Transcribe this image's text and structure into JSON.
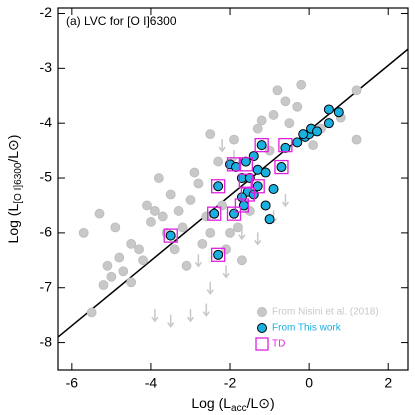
{
  "chart_data": {
    "type": "scatter",
    "title": "(a) LVC for [O I]6300",
    "xlabel": {
      "text": "Log (L",
      "sub": "acc",
      "post": "/L⊙)"
    },
    "ylabel": {
      "text": "Log (L",
      "sub": "[O I]6300",
      "post": "/L⊙)"
    },
    "xlim": [
      -6.35,
      2.5
    ],
    "ylim": [
      -8.5,
      -1.9
    ],
    "xticks": [
      -6,
      -4,
      -2,
      0,
      2
    ],
    "yticks": [
      -8,
      -7,
      -6,
      -5,
      -4,
      -3,
      -2
    ],
    "legend": "lower right",
    "series": [
      {
        "name": "From Nisini et al. (2018)",
        "color": "#c8c8c8",
        "marker": "circle",
        "x": [
          -5.5,
          -5.2,
          -5.1,
          -5.0,
          -4.8,
          -4.7,
          -4.5,
          -4.5,
          -4.3,
          -4.2,
          -4.1,
          -4.0,
          -3.9,
          -3.8,
          -3.7,
          -3.6,
          -3.5,
          -3.4,
          -3.3,
          -3.2,
          -3.1,
          -3.0,
          -2.9,
          -2.8,
          -2.7,
          -2.6,
          -2.5,
          -2.5,
          -2.3,
          -2.2,
          -2.1,
          -2.0,
          -1.9,
          -1.8,
          -1.7,
          -1.5,
          -1.3,
          -1.2,
          -1.0,
          -0.9,
          -0.8,
          -0.6,
          -0.5,
          -0.3,
          -0.2,
          0.1,
          0.3,
          0.8,
          1.2,
          1.2,
          -5.7,
          -5.3,
          -4.9
        ],
        "values": [
          -7.45,
          -6.95,
          -6.6,
          -6.8,
          -6.45,
          -6.7,
          -6.2,
          -6.9,
          -6.3,
          -6.5,
          -5.5,
          -5.8,
          -5.6,
          -5.0,
          -5.7,
          -6.0,
          -5.3,
          -6.3,
          -5.6,
          -5.9,
          -6.6,
          -5.4,
          -4.9,
          -5.1,
          -6.2,
          -5.7,
          -4.2,
          -6.0,
          -4.7,
          -5.5,
          -6.3,
          -6.0,
          -4.3,
          -5.9,
          -6.5,
          -5.6,
          -4.1,
          -3.95,
          -4.5,
          -3.85,
          -3.4,
          -3.6,
          -4.0,
          -3.7,
          -3.3,
          -4.4,
          -4.1,
          -3.9,
          -3.4,
          -4.3,
          -6.0,
          -5.65,
          -5.9
        ]
      },
      {
        "color": "#c8c8c8",
        "marker": "upper-limit",
        "x": [
          -3.9,
          -3.5,
          -3.0,
          -2.6,
          -2.5,
          -2.1,
          -1.7,
          -1.3,
          -0.9,
          -2.8,
          -2.2,
          -1.9,
          -0.6
        ],
        "values": [
          -7.5,
          -7.6,
          -7.5,
          -7.4,
          -7.0,
          -6.7,
          -6.0,
          -6.1,
          -5.7,
          -6.5,
          -4.4,
          -4.6,
          -5.4
        ]
      },
      {
        "name": "From This work",
        "color": "#1ab0e0",
        "marker": "circle",
        "x": [
          -3.5,
          -2.3,
          -2.4,
          -1.9,
          -2.3,
          -2.0,
          -1.85,
          -1.6,
          -1.4,
          -1.2,
          -1.7,
          -1.5,
          -1.3,
          -1.1,
          -1.55,
          -1.7,
          -1.4,
          -1.65,
          -1.3,
          -1.1,
          -0.9,
          -1.0,
          -0.7,
          -0.6,
          -0.3,
          -0.1,
          0.0,
          0.05,
          0.2,
          0.5,
          0.5,
          0.75,
          -0.15
        ],
        "values": [
          -6.05,
          -6.4,
          -5.65,
          -5.65,
          -5.15,
          -4.75,
          -4.8,
          -4.7,
          -4.6,
          -4.4,
          -5.0,
          -5.0,
          -4.85,
          -4.9,
          -5.25,
          -5.35,
          -5.3,
          -5.5,
          -5.15,
          -5.5,
          -5.2,
          -5.75,
          -4.8,
          -4.45,
          -4.35,
          -4.25,
          -4.2,
          -4.1,
          -4.15,
          -4.0,
          -3.75,
          -3.8,
          -4.2
        ]
      },
      {
        "name": "TD",
        "color": "#e020e0",
        "marker": "square",
        "x": [
          -3.5,
          -2.3,
          -2.4,
          -1.9,
          -2.3,
          -1.9,
          -1.6,
          -1.6,
          -1.55,
          -1.7,
          -1.2,
          -0.7,
          -0.6,
          -1.3
        ],
        "values": [
          -6.05,
          -6.4,
          -5.65,
          -5.65,
          -5.15,
          -4.75,
          -4.75,
          -5.05,
          -5.3,
          -5.5,
          -4.4,
          -4.8,
          -4.4,
          -5.15
        ]
      }
    ],
    "fit": {
      "color": "#000000",
      "x": [
        -6.35,
        2.5
      ],
      "values": [
        -7.9,
        -2.65
      ]
    }
  }
}
